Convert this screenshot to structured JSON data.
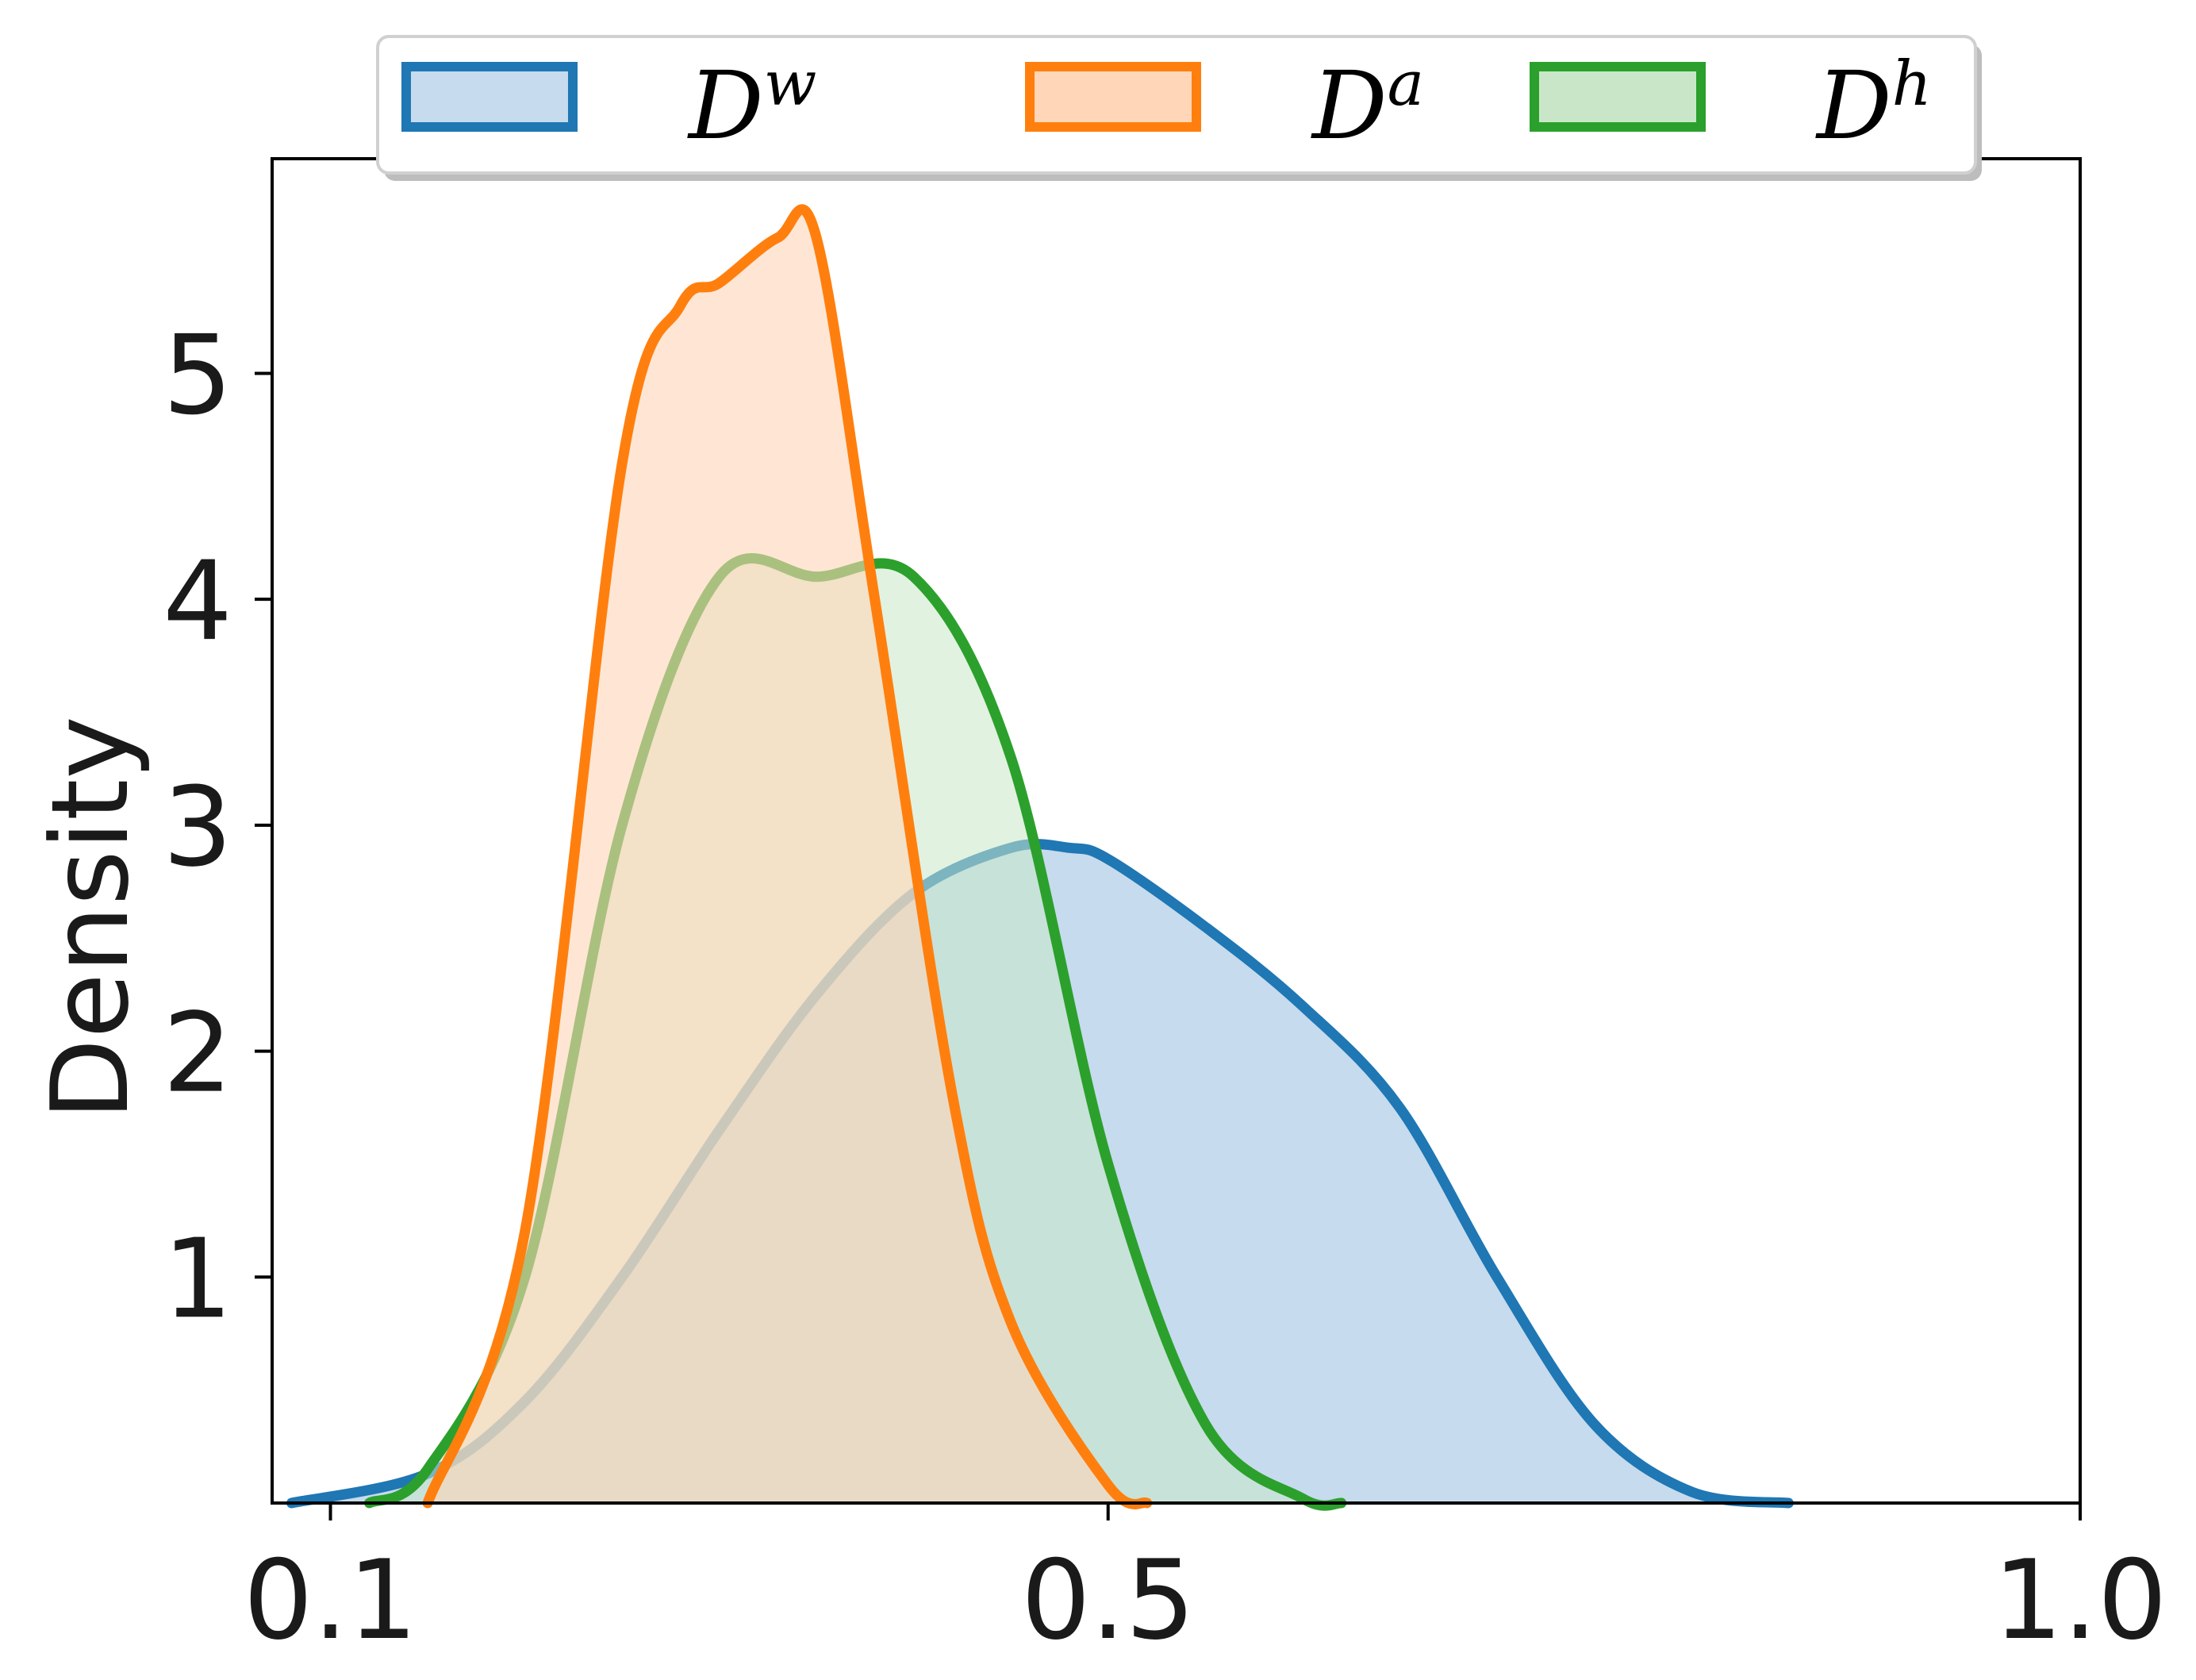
{
  "chart_data": {
    "type": "area",
    "title": "",
    "xlabel": "",
    "ylabel": "Density",
    "xlim": [
      0.07,
      1.0
    ],
    "ylim": [
      0,
      5.95
    ],
    "x_ticks": [
      "0.1",
      "0.5",
      "1.0"
    ],
    "y_ticks": [
      "1",
      "2",
      "3",
      "4",
      "5"
    ],
    "x_tick_values": [
      0.1,
      0.5,
      1.0
    ],
    "y_tick_values": [
      1,
      2,
      3,
      4,
      5
    ],
    "grid": false,
    "legend_position": "top-center",
    "series": [
      {
        "legend_base": "D",
        "legend_sup": "w",
        "color": "#1f77b4",
        "fill": "#c6dbed",
        "fill_opacity": 1.0,
        "x": [
          0.08,
          0.15,
          0.2,
          0.25,
          0.3,
          0.35,
          0.4,
          0.45,
          0.48,
          0.5,
          0.55,
          0.6,
          0.65,
          0.7,
          0.75,
          0.8,
          0.85
        ],
        "y": [
          0.0,
          0.13,
          0.45,
          1.0,
          1.65,
          2.25,
          2.7,
          2.9,
          2.9,
          2.85,
          2.55,
          2.2,
          1.75,
          1.0,
          0.35,
          0.05,
          0.0
        ]
      },
      {
        "legend_base": "D",
        "legend_sup": "h",
        "color": "#2ca02c",
        "fill": "#c9e7c8",
        "fill_opacity": 0.55,
        "x": [
          0.12,
          0.15,
          0.2,
          0.25,
          0.3,
          0.35,
          0.4,
          0.45,
          0.5,
          0.55,
          0.6,
          0.62
        ],
        "y": [
          0.0,
          0.15,
          1.0,
          3.0,
          4.1,
          4.1,
          4.1,
          3.3,
          1.5,
          0.35,
          0.02,
          0.0
        ]
      },
      {
        "legend_base": "D",
        "legend_sup": "a",
        "color": "#ff7f0e",
        "fill": "#ffd6b8",
        "fill_opacity": 0.6,
        "x": [
          0.15,
          0.2,
          0.25,
          0.28,
          0.3,
          0.33,
          0.35,
          0.38,
          0.42,
          0.45,
          0.5,
          0.52
        ],
        "y": [
          0.0,
          1.2,
          4.6,
          5.3,
          5.4,
          5.6,
          5.6,
          4.0,
          1.8,
          0.8,
          0.08,
          0.0
        ]
      }
    ]
  }
}
